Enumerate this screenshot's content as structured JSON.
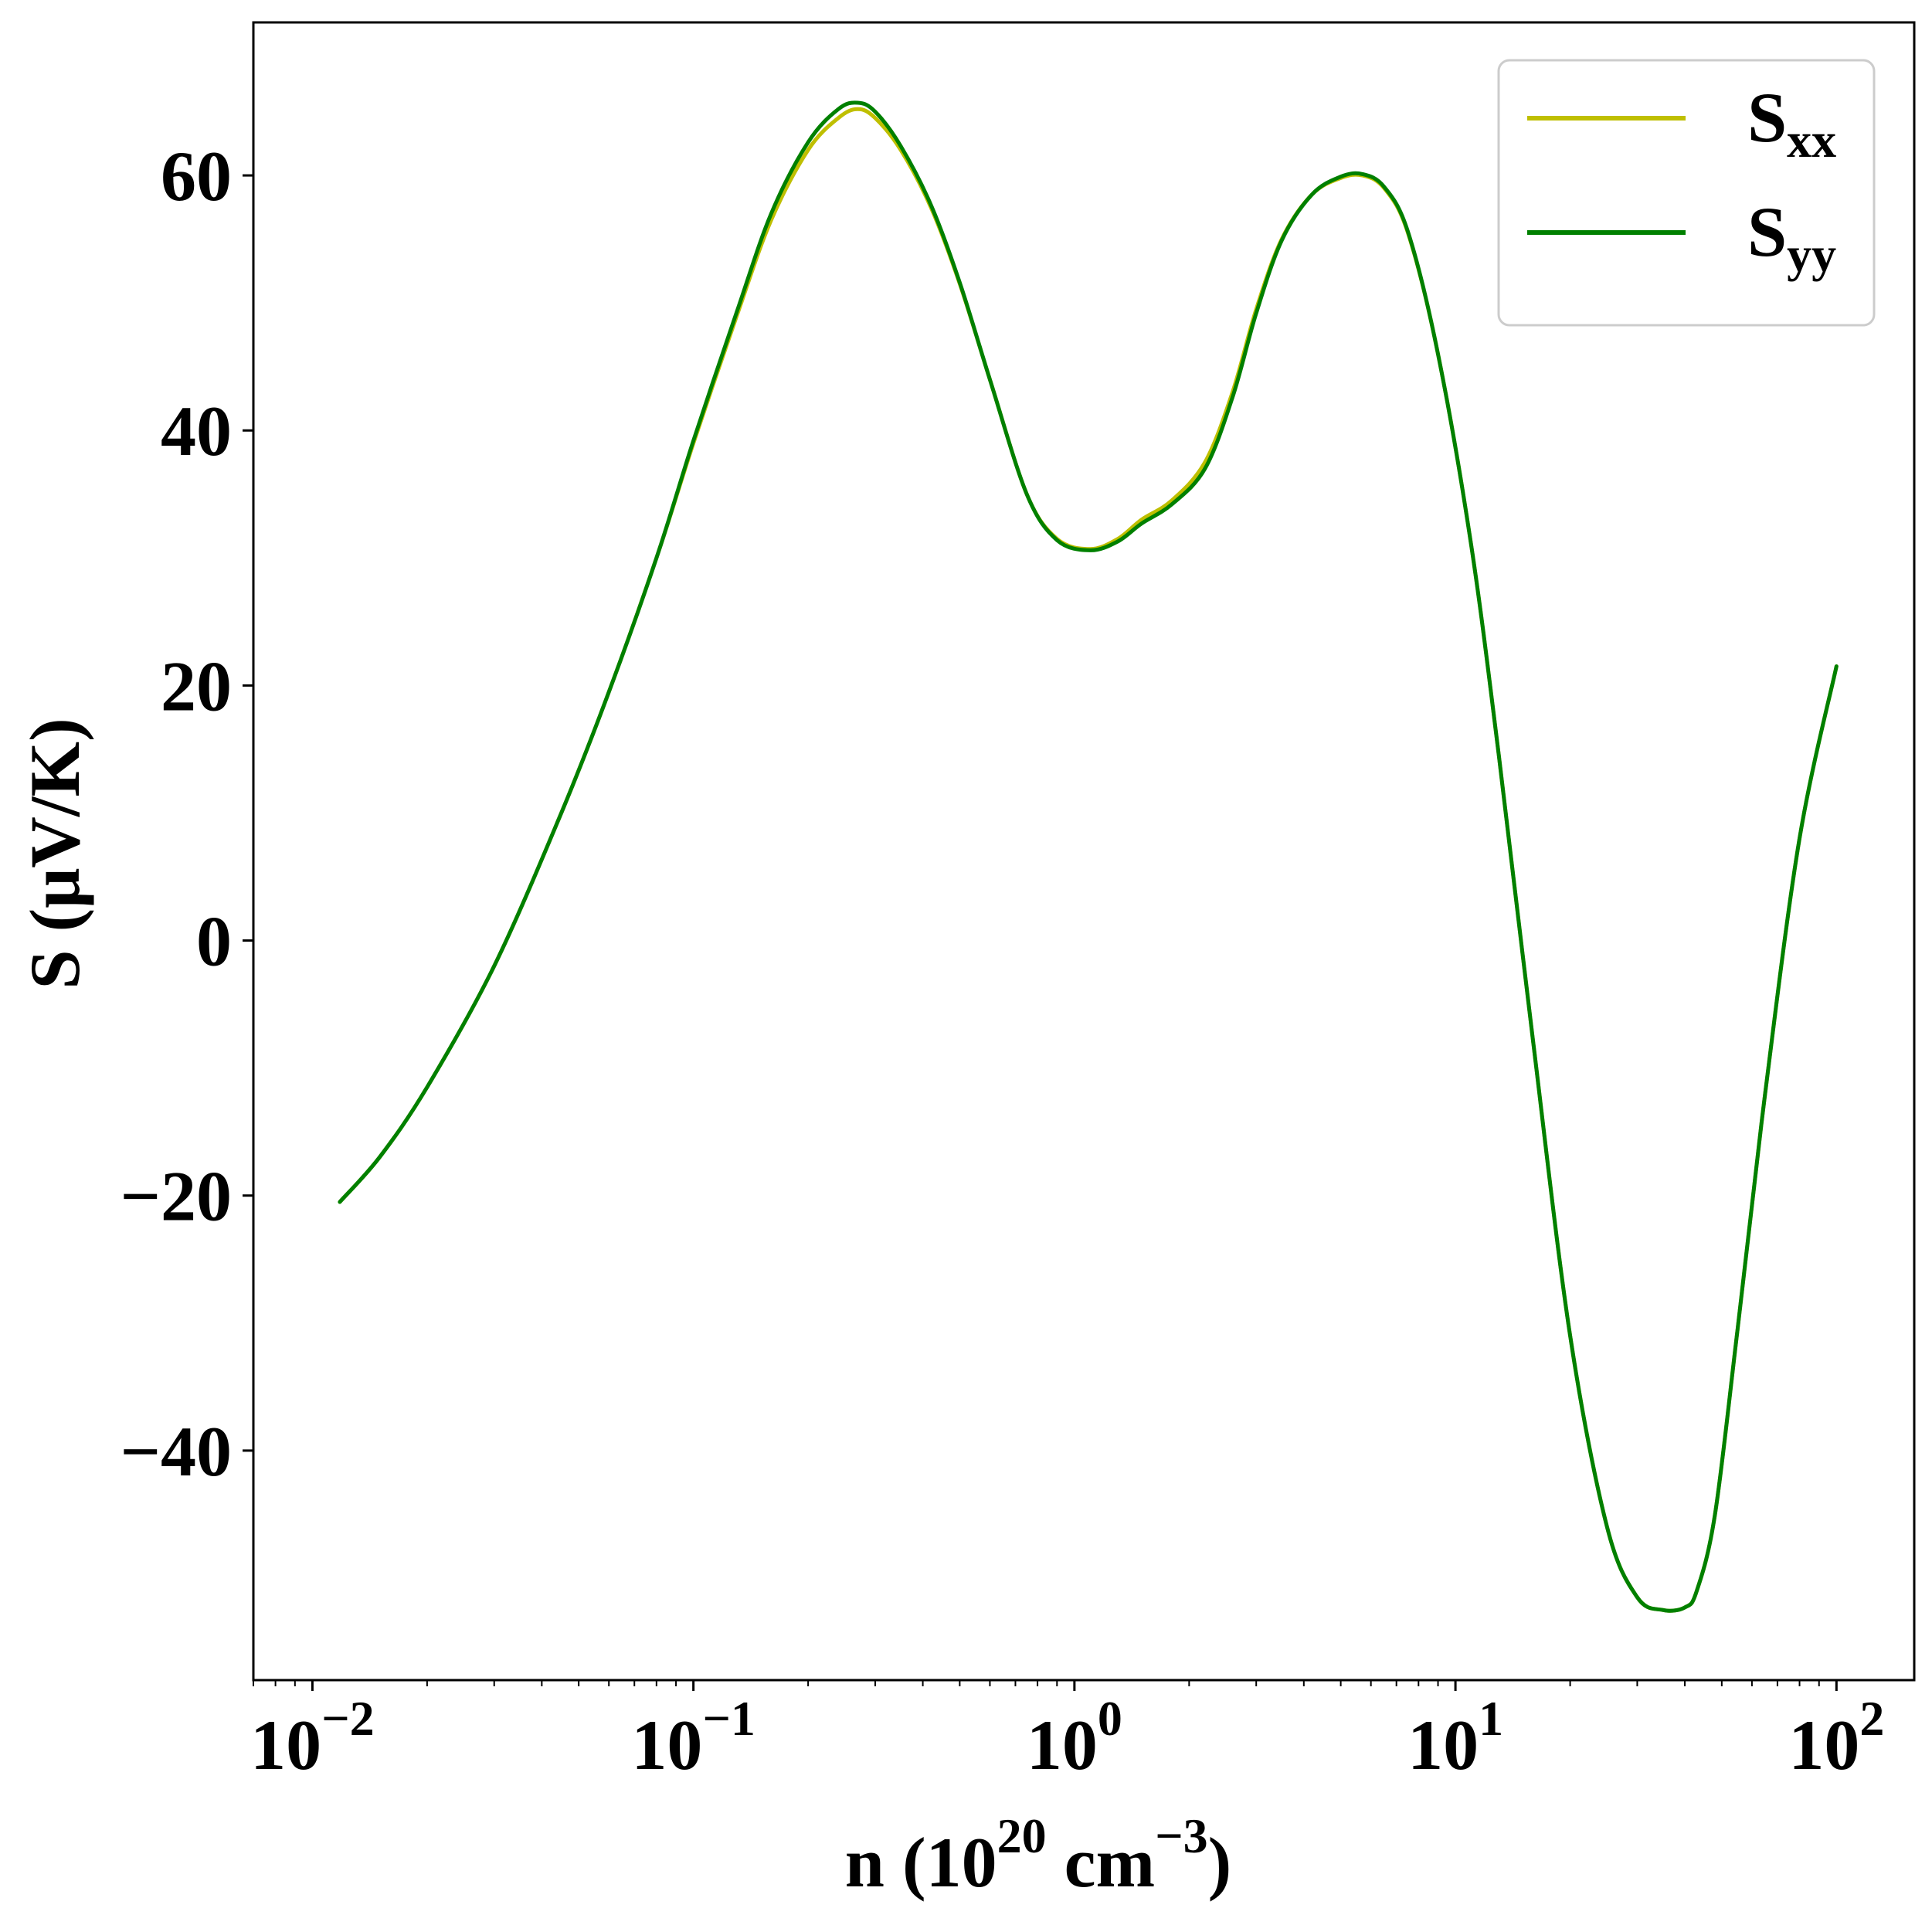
{
  "colors": {
    "sxx": "#bfbf00",
    "syy": "#008000",
    "axis": "#000000",
    "background": "#ffffff",
    "legend_border": "#cccccc"
  },
  "chart_data": {
    "type": "line",
    "title": "",
    "xlabel": {
      "prefix": "n (10",
      "sup1": "20",
      "mid": " cm",
      "sup2": "−3",
      "suffix": ")"
    },
    "ylabel": "S (μV/K)",
    "xscale": "log",
    "xlim": [
      0.007,
      160
    ],
    "ylim": [
      -58,
      72
    ],
    "grid": false,
    "legend_position": "top-right",
    "x_ticks": [
      {
        "value": 0.01,
        "base": "10",
        "exp": "−2"
      },
      {
        "value": 0.1,
        "base": "10",
        "exp": "−1"
      },
      {
        "value": 1,
        "base": "10",
        "exp": "0"
      },
      {
        "value": 10,
        "base": "10",
        "exp": "1"
      },
      {
        "value": 100,
        "base": "10",
        "exp": "2"
      }
    ],
    "y_ticks": [
      {
        "value": -40,
        "label": "−40"
      },
      {
        "value": -20,
        "label": "−20"
      },
      {
        "value": 0,
        "label": "0"
      },
      {
        "value": 20,
        "label": "20"
      },
      {
        "value": 40,
        "label": "40"
      },
      {
        "value": 60,
        "label": "60"
      }
    ],
    "x": [
      0.0118,
      0.015,
      0.02,
      0.03,
      0.045,
      0.06,
      0.08,
      0.1,
      0.13,
      0.16,
      0.2,
      0.24,
      0.27,
      0.3,
      0.35,
      0.42,
      0.5,
      0.6,
      0.75,
      0.9,
      1.1,
      1.3,
      1.5,
      1.8,
      2.2,
      2.6,
      3.0,
      3.5,
      4.2,
      5.0,
      5.7,
      6.5,
      7.5,
      9.0,
      11,
      13,
      16,
      20,
      25,
      30,
      35,
      40,
      43,
      48,
      55,
      65,
      80,
      100
    ],
    "series": [
      {
        "name": "S",
        "sub": "xx",
        "color_key": "sxx",
        "values": [
          -20.5,
          -17.0,
          -11.5,
          -2.0,
          10.0,
          19.5,
          30.0,
          39.0,
          49.0,
          56.5,
          62.0,
          64.5,
          65.2,
          64.5,
          62.0,
          57.5,
          51.5,
          44.0,
          35.0,
          31.5,
          30.7,
          31.5,
          33.0,
          34.5,
          37.5,
          43.0,
          49.5,
          55.0,
          58.5,
          59.8,
          60.0,
          59.0,
          55.5,
          46.0,
          31.0,
          14.5,
          -8.0,
          -31.0,
          -46.0,
          -51.5,
          -52.5,
          -52.3,
          -51.0,
          -45.0,
          -30.5,
          -12.0,
          8.0,
          21.5
        ]
      },
      {
        "name": "S",
        "sub": "yy",
        "color_key": "syy",
        "values": [
          -20.5,
          -17.0,
          -11.5,
          -2.0,
          10.0,
          19.5,
          30.0,
          39.2,
          49.3,
          57.0,
          62.6,
          65.2,
          65.7,
          65.0,
          62.3,
          57.7,
          51.6,
          44.0,
          35.0,
          31.4,
          30.6,
          31.3,
          32.7,
          34.2,
          37.0,
          42.6,
          49.2,
          54.9,
          58.5,
          59.9,
          60.1,
          59.1,
          55.6,
          46.0,
          31.0,
          14.5,
          -8.0,
          -31.0,
          -46.0,
          -51.5,
          -52.5,
          -52.3,
          -51.0,
          -45.0,
          -30.5,
          -12.0,
          8.0,
          21.5
        ]
      }
    ]
  }
}
